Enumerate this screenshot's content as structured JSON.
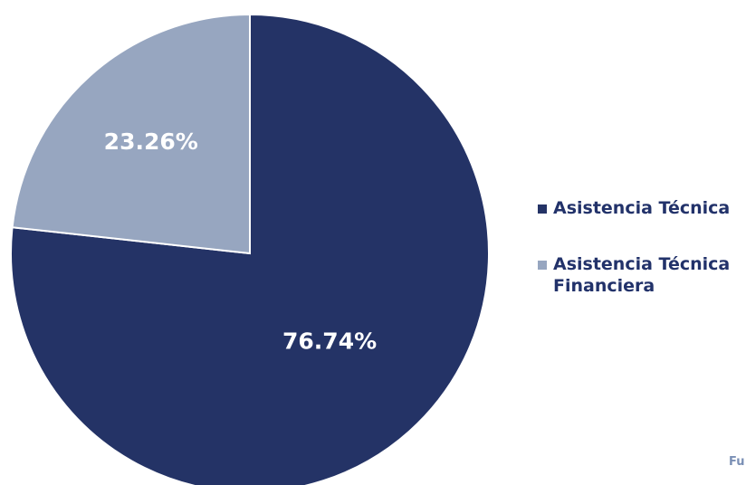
{
  "chart_data": {
    "type": "pie",
    "categories": [
      "Asistencia Técnica",
      "Asistencia Técnica Financiera"
    ],
    "values": [
      76.74,
      23.26
    ],
    "data_labels": [
      "76.74%",
      "23.26%"
    ],
    "colors": [
      "#243366",
      "#97a6c0"
    ],
    "start_angle": "12 o'clock",
    "direction": "clockwise",
    "legend": {
      "placement": "right",
      "entries": [
        "Asistencia Técnica",
        "Asistencia Técnica Financiera"
      ]
    }
  },
  "footer": {
    "source_fragment": "Fu"
  }
}
